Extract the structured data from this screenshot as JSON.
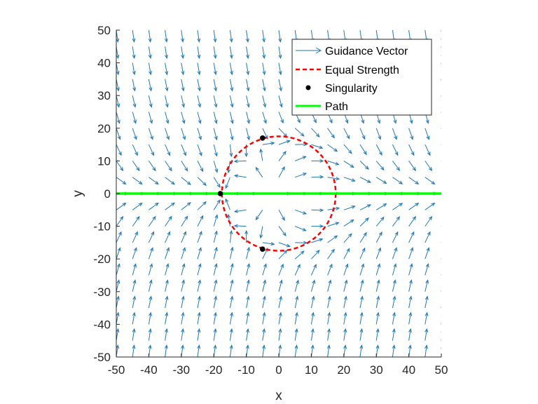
{
  "chart_data": {
    "type": "quiver",
    "xlabel": "x",
    "ylabel": "y",
    "xlim": [
      -50,
      50
    ],
    "ylim": [
      -50,
      50
    ],
    "xticks": [
      -50,
      -40,
      -30,
      -20,
      -10,
      0,
      10,
      20,
      30,
      40,
      50
    ],
    "yticks": [
      -50,
      -40,
      -30,
      -20,
      -10,
      0,
      10,
      20,
      30,
      40,
      50
    ],
    "grid": false,
    "legend_position": "top-right",
    "legend": [
      "Guidance Vector",
      "Equal Strength",
      "Singularity",
      "Path"
    ],
    "colors": {
      "guidance_vector": "#1f77b4",
      "equal_strength": "#ff0000",
      "singularity": "#000000",
      "path": "#00ff00"
    },
    "vector_field": {
      "grid_min": -50,
      "grid_max": 50,
      "grid_step": 5,
      "unit_vectors": true,
      "path_line": "y = 0",
      "circle_center": [
        0,
        0
      ],
      "circle_radius": 17.5
    },
    "equal_strength_circle": {
      "center": [
        0,
        0
      ],
      "radius": 17.5
    },
    "singularities": [
      {
        "x": -5,
        "y": 17
      },
      {
        "x": -18,
        "y": 0
      },
      {
        "x": -5,
        "y": -17
      }
    ],
    "path": {
      "x": [
        -50,
        50
      ],
      "y": [
        0,
        0
      ]
    }
  }
}
